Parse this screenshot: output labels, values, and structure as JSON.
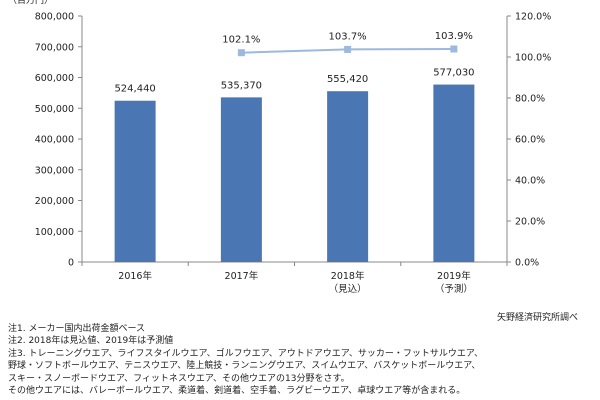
{
  "chart_data": {
    "type": "bar+line",
    "unit_label": "（百万円）",
    "categories": [
      {
        "line1": "2016年",
        "line2": ""
      },
      {
        "line1": "2017年",
        "line2": ""
      },
      {
        "line1": "2018年",
        "line2": "（見込）"
      },
      {
        "line1": "2019年",
        "line2": "（予測）"
      }
    ],
    "bar_series": {
      "values": [
        524440,
        535370,
        555420,
        577030
      ],
      "labels": [
        "524,440",
        "535,370",
        "555,420",
        "577,030"
      ],
      "color": "#4a77b3"
    },
    "line_series": {
      "values": [
        null,
        102.1,
        103.7,
        103.9
      ],
      "labels": [
        "",
        "102.1%",
        "103.7%",
        "103.9%"
      ],
      "color": "#9cb9de"
    },
    "y_left": {
      "min": 0,
      "max": 800000,
      "step": 100000,
      "ticks": [
        "0",
        "100,000",
        "200,000",
        "300,000",
        "400,000",
        "500,000",
        "600,000",
        "700,000",
        "800,000"
      ]
    },
    "y_right": {
      "min": 0,
      "max": 120,
      "step": 20,
      "ticks": [
        "0.0%",
        "20.0%",
        "40.0%",
        "60.0%",
        "80.0%",
        "100.0%",
        "120.0%"
      ]
    },
    "grid": false
  },
  "source": "矢野経済研究所調べ",
  "notes": [
    "注1. メーカー国内出荷金額ベース",
    "注2. 2018年は見込値、2019年は予測値",
    "注3. トレーニングウエア、ライフスタイルウエア、ゴルフウエア、アウトドアウエア、サッカー・フットサルウエア、",
    "野球・ソフトボールウエア、テニスウエア、陸上競技・ランニングウエア、スイムウエア、バスケットボールウエア、",
    "スキー・スノーボードウエア、フィットネスウエア、その他ウエアの13分野をさす。",
    "その他ウエアには、バレーボールウエア、柔道着、剣道着、空手着、ラグビーウエア、卓球ウエア等が含まれる。"
  ]
}
